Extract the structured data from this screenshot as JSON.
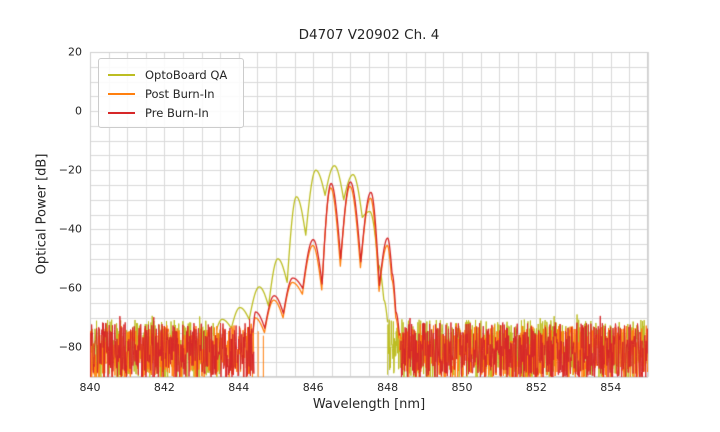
{
  "chart_data": {
    "type": "line",
    "title": "D4707 V20902 Ch. 4",
    "xlabel": "Wavelength [nm]",
    "ylabel": "Optical Power [dB]",
    "xlim": [
      840,
      855
    ],
    "ylim": [
      -90,
      20
    ],
    "xticks": [
      840,
      842,
      844,
      846,
      848,
      850,
      852,
      854
    ],
    "xtick_labels": [
      "840",
      "842",
      "844",
      "846",
      "848",
      "850",
      "852",
      "854"
    ],
    "yticks": [
      20,
      0,
      -20,
      -40,
      -60,
      -80
    ],
    "ytick_labels": [
      "20",
      "0",
      "−20",
      "−40",
      "−60",
      "−80"
    ],
    "grid": {
      "xstep": 0.5,
      "ystep": 5,
      "color": "#d9d9d9",
      "frame_color": "#cfcfcf",
      "on": true
    },
    "legend_position": "upper-left",
    "noise_dx": 0.011,
    "noise_bottom": -91,
    "series": [
      {
        "name": "OptoBoard QA",
        "color": "#bcbd22",
        "seed": 11,
        "noise_top": -70.5,
        "noise": [
          [
            840.0,
            843.55
          ],
          [
            848.0,
            855.0
          ]
        ],
        "spikes": [],
        "points": [
          [
            843.4,
            -74.0
          ],
          [
            843.55,
            -70.5
          ],
          [
            843.8,
            -73.5
          ],
          [
            844.03,
            -66.5
          ],
          [
            844.28,
            -70.5
          ],
          [
            844.55,
            -59.5
          ],
          [
            844.8,
            -66.0
          ],
          [
            845.05,
            -50.0
          ],
          [
            845.3,
            -58.0
          ],
          [
            845.55,
            -29.0
          ],
          [
            845.8,
            -42.0
          ],
          [
            846.07,
            -20.0
          ],
          [
            846.32,
            -28.5
          ],
          [
            846.57,
            -18.5
          ],
          [
            846.82,
            -30.0
          ],
          [
            847.07,
            -21.5
          ],
          [
            847.32,
            -36.0
          ],
          [
            847.52,
            -34.0
          ],
          [
            847.75,
            -52.0
          ],
          [
            847.9,
            -64.0
          ],
          [
            848.0,
            -71.5
          ]
        ]
      },
      {
        "name": "Post Burn-In",
        "color": "#ff7f0e",
        "seed": 22,
        "noise_top": -72.5,
        "noise": [
          [
            840.0,
            844.4
          ],
          [
            848.32,
            855.0
          ]
        ],
        "spikes": [
          [
            844.52,
            -74.5
          ],
          [
            844.66,
            -76.0
          ]
        ],
        "points": [
          [
            844.38,
            -76.0
          ],
          [
            844.44,
            -70.0
          ],
          [
            844.69,
            -75.0
          ],
          [
            844.94,
            -64.0
          ],
          [
            845.19,
            -70.0
          ],
          [
            845.44,
            -58.0
          ],
          [
            845.71,
            -62.0
          ],
          [
            845.99,
            -45.5
          ],
          [
            846.23,
            -60.5
          ],
          [
            846.47,
            -26.0
          ],
          [
            846.73,
            -52.5
          ],
          [
            846.99,
            -25.5
          ],
          [
            847.27,
            -53.0
          ],
          [
            847.54,
            -29.5
          ],
          [
            847.77,
            -61.0
          ],
          [
            847.99,
            -45.5
          ],
          [
            848.11,
            -57.0
          ],
          [
            848.22,
            -70.0
          ],
          [
            848.3,
            -77.0
          ]
        ]
      },
      {
        "name": "Pre Burn-In",
        "color": "#d62728",
        "seed": 33,
        "noise_top": -71.5,
        "noise": [
          [
            840.0,
            844.42
          ],
          [
            848.35,
            855.0
          ]
        ],
        "spikes": [],
        "points": [
          [
            844.38,
            -75.0
          ],
          [
            844.45,
            -68.0
          ],
          [
            844.7,
            -73.5
          ],
          [
            844.95,
            -62.5
          ],
          [
            845.2,
            -68.5
          ],
          [
            845.45,
            -56.5
          ],
          [
            845.72,
            -60.0
          ],
          [
            846.0,
            -43.5
          ],
          [
            846.24,
            -58.5
          ],
          [
            846.48,
            -24.5
          ],
          [
            846.74,
            -50.0
          ],
          [
            847.0,
            -24.0
          ],
          [
            847.28,
            -51.0
          ],
          [
            847.55,
            -27.5
          ],
          [
            847.78,
            -59.0
          ],
          [
            848.0,
            -43.0
          ],
          [
            848.12,
            -55.0
          ],
          [
            848.22,
            -68.0
          ],
          [
            848.32,
            -76.0
          ]
        ]
      }
    ]
  }
}
